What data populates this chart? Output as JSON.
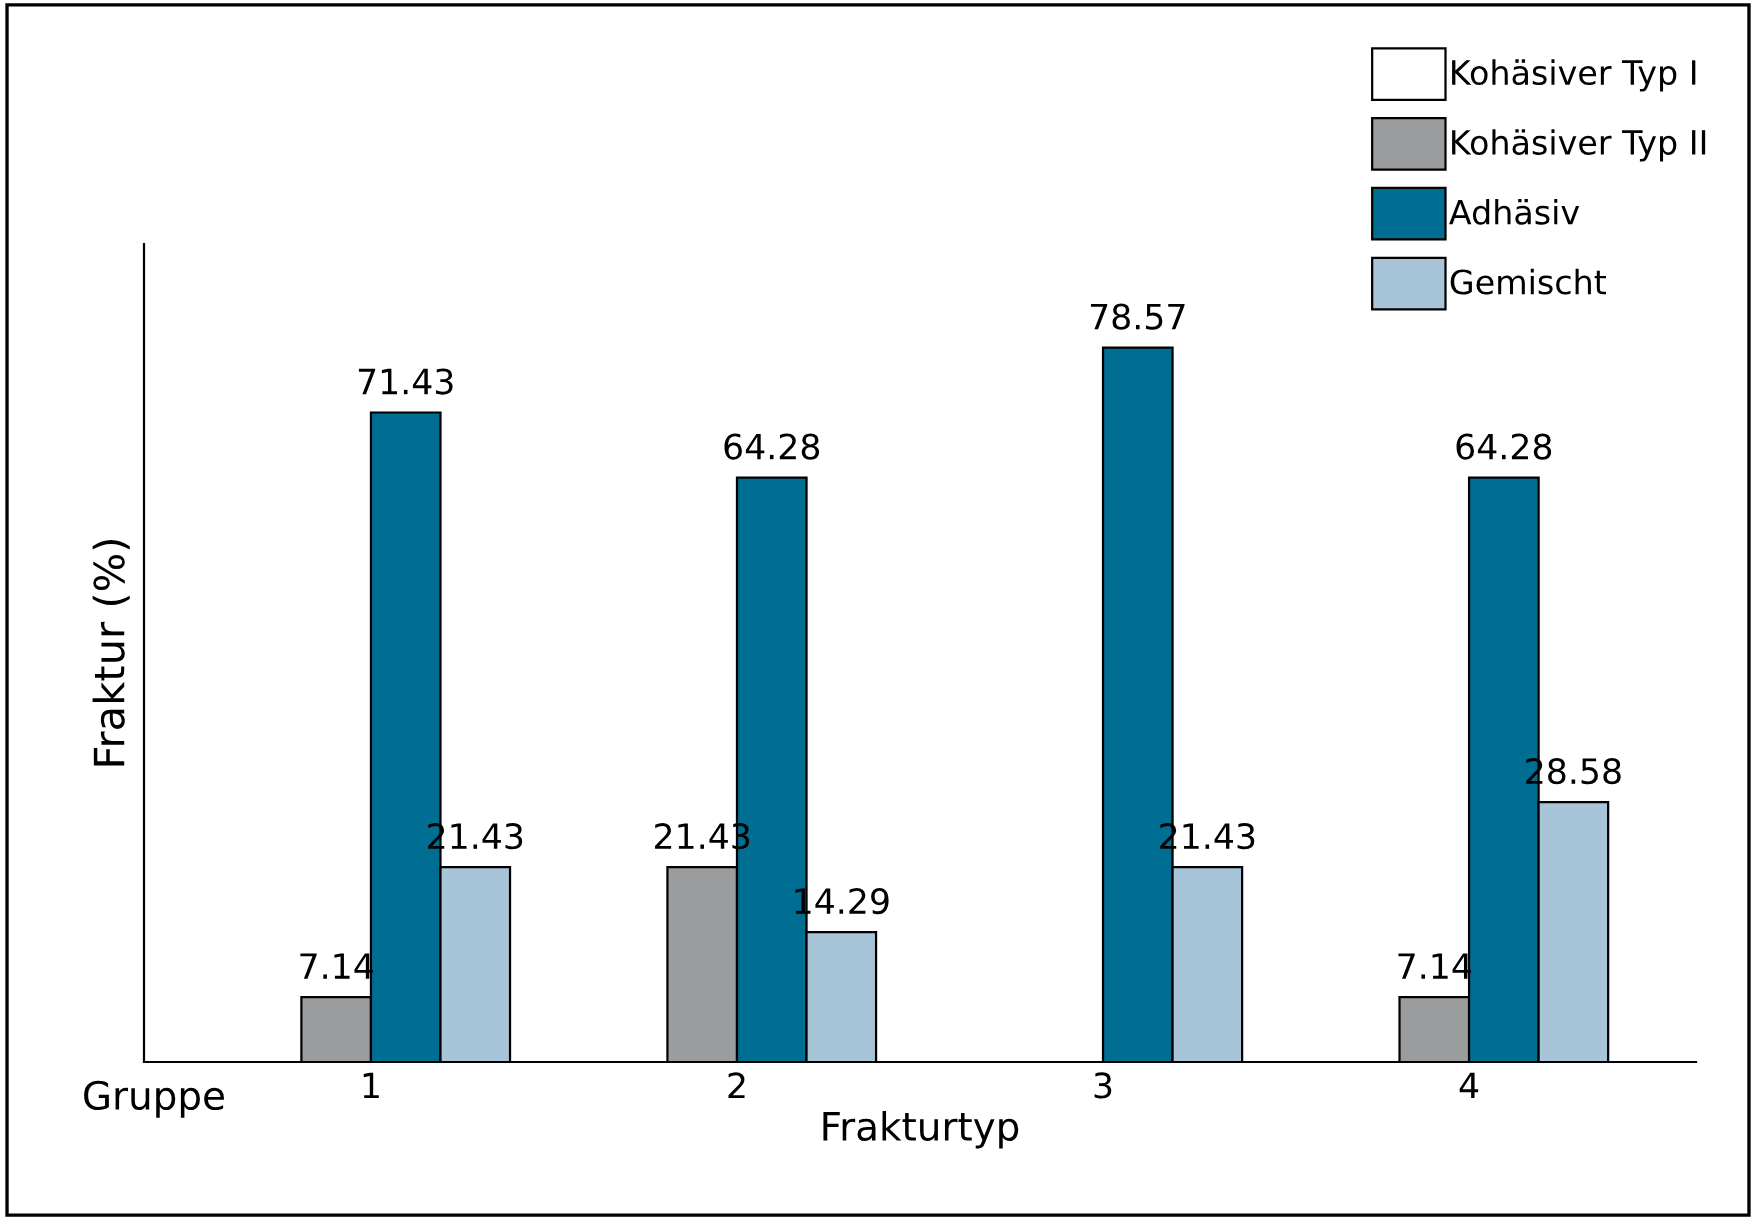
{
  "chart_data": {
    "type": "bar",
    "xlabel": "Frakturtyp",
    "ylabel": "Fraktur (%)",
    "categories": [
      "1",
      "2",
      "3",
      "4"
    ],
    "series": [
      {
        "name": "Kohäsiver Typ I",
        "color": "#ffffff",
        "values": [
          null,
          null,
          null,
          null
        ]
      },
      {
        "name": "Kohäsiver Typ II",
        "color": "#9a9c9e",
        "values": [
          7.14,
          21.43,
          null,
          7.14
        ]
      },
      {
        "name": "Adhäsiv",
        "color": "#006d93",
        "values": [
          71.43,
          64.28,
          78.57,
          64.28
        ]
      },
      {
        "name": "Gemischt",
        "color": "#a8c4d8",
        "values": [
          21.43,
          14.29,
          21.43,
          28.58
        ]
      }
    ],
    "annotations": [
      "Gruppe"
    ],
    "data_labels": true,
    "legend": "top right",
    "grid": false
  }
}
